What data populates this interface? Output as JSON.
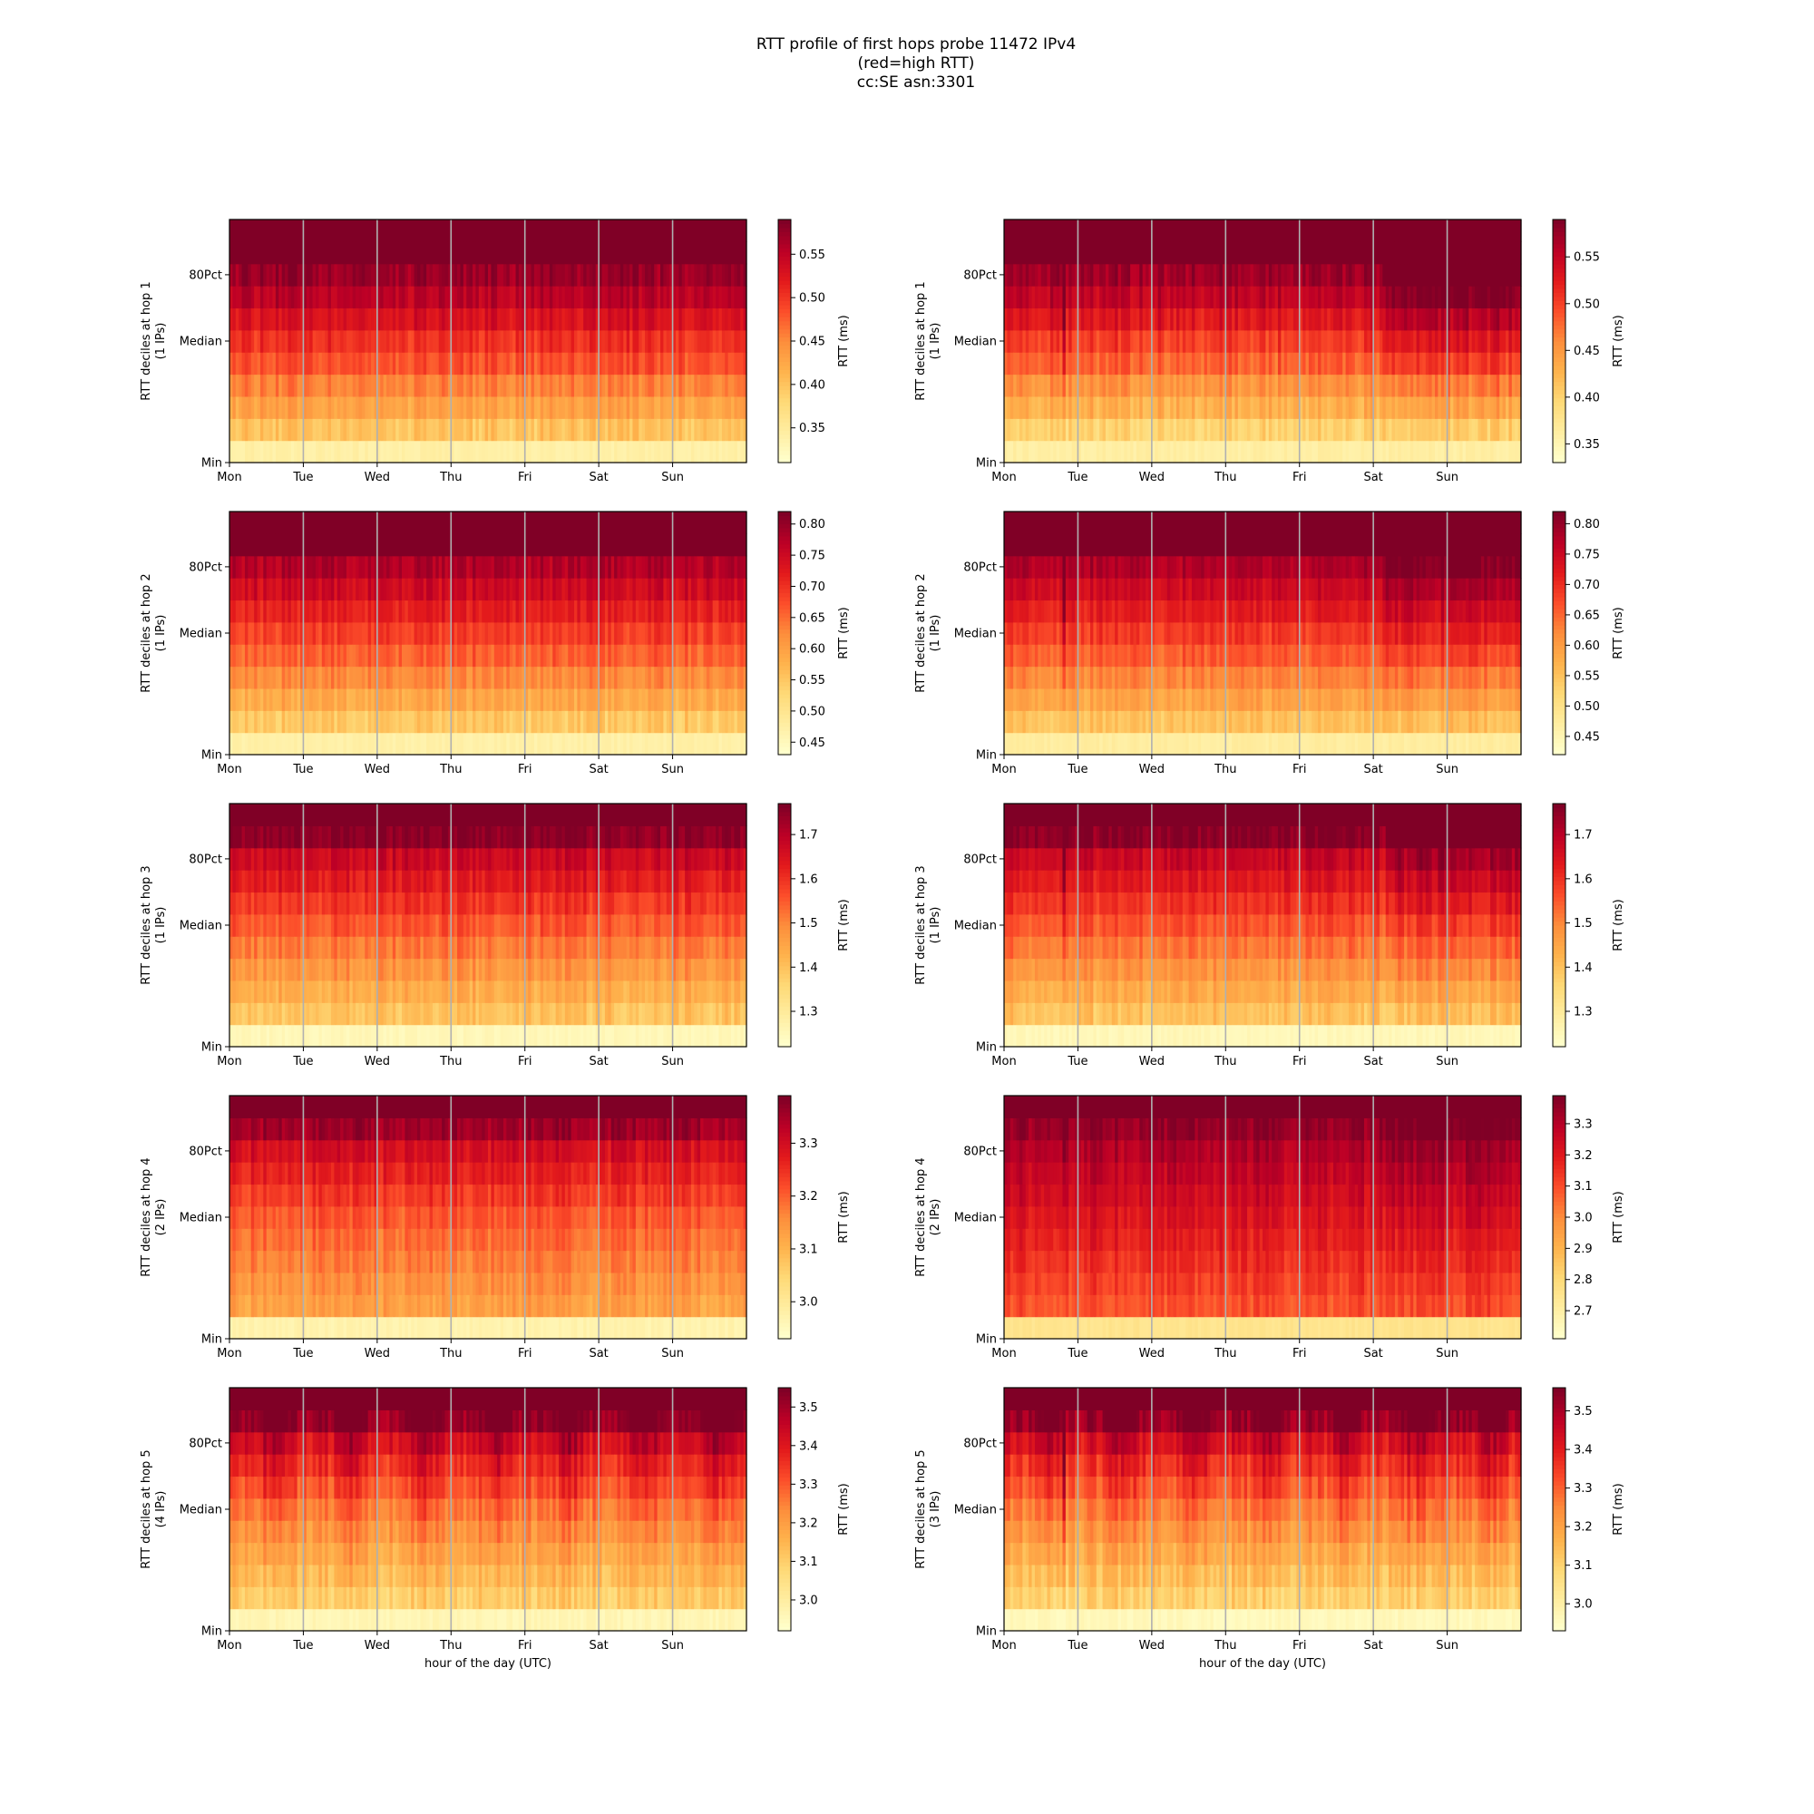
{
  "figure": {
    "title_lines": [
      "RTT profile of first hops probe 11472 IPv4",
      "(red=high RTT)",
      "cc:SE asn:3301"
    ]
  },
  "colormap": [
    "#ffffcc",
    "#ffeda0",
    "#fed976",
    "#feb24c",
    "#fd8d3c",
    "#fc4e2a",
    "#e31a1c",
    "#bd0026",
    "#800026"
  ],
  "chart_data": [
    {
      "type": "heatmap",
      "row": 1,
      "col": 1,
      "ylabel": "RTT deciles at hop 1",
      "ylabel2": "(1 IPs)",
      "yticks": [
        "Min",
        "Median",
        "80Pct"
      ],
      "xticks": [
        "Mon",
        "Tue",
        "Wed",
        "Thu",
        "Fri",
        "Sat",
        "Sun"
      ],
      "xlabel": "",
      "colorbar_label": "RTT (ms)",
      "colorbar_range": [
        0.31,
        0.59
      ],
      "colorbar_ticks": [
        "0.35",
        "0.40",
        "0.45",
        "0.50",
        "0.55"
      ],
      "deciles": [
        0.34,
        0.4,
        0.43,
        0.455,
        0.485,
        0.505,
        0.53,
        0.555,
        0.575,
        0.62,
        0.75
      ],
      "noise": 0.015,
      "events": []
    },
    {
      "type": "heatmap",
      "row": 1,
      "col": 2,
      "ylabel": "RTT deciles at hop 1",
      "ylabel2": "(1 IPs)",
      "yticks": [
        "Min",
        "Median",
        "80Pct"
      ],
      "xticks": [
        "Mon",
        "Tue",
        "Wed",
        "Thu",
        "Fri",
        "Sat",
        "Sun"
      ],
      "xlabel": "",
      "colorbar_label": "RTT (ms)",
      "colorbar_range": [
        0.33,
        0.59
      ],
      "colorbar_ticks": [
        "0.35",
        "0.40",
        "0.45",
        "0.50",
        "0.55"
      ],
      "deciles": [
        0.36,
        0.4,
        0.43,
        0.455,
        0.485,
        0.505,
        0.53,
        0.555,
        0.575,
        0.62,
        0.75
      ],
      "noise": 0.015,
      "events": [
        {
          "start": 0.108,
          "end": 0.115,
          "shift": 0.12
        },
        {
          "start": 0.735,
          "end": 1.0,
          "shift": 0.05
        }
      ]
    },
    {
      "type": "heatmap",
      "row": 2,
      "col": 1,
      "ylabel": "RTT deciles at hop 2",
      "ylabel2": "(1 IPs)",
      "yticks": [
        "Min",
        "Median",
        "80Pct"
      ],
      "xticks": [
        "Mon",
        "Tue",
        "Wed",
        "Thu",
        "Fri",
        "Sat",
        "Sun"
      ],
      "xlabel": "",
      "colorbar_label": "RTT (ms)",
      "colorbar_range": [
        0.43,
        0.82
      ],
      "colorbar_ticks": [
        "0.45",
        "0.50",
        "0.55",
        "0.60",
        "0.65",
        "0.70",
        "0.75",
        "0.80"
      ],
      "deciles": [
        0.47,
        0.55,
        0.59,
        0.625,
        0.66,
        0.69,
        0.72,
        0.75,
        0.78,
        0.85,
        1.0
      ],
      "noise": 0.02,
      "events": []
    },
    {
      "type": "heatmap",
      "row": 2,
      "col": 2,
      "ylabel": "RTT deciles at hop 2",
      "ylabel2": "(1 IPs)",
      "yticks": [
        "Min",
        "Median",
        "80Pct"
      ],
      "xticks": [
        "Mon",
        "Tue",
        "Wed",
        "Thu",
        "Fri",
        "Sat",
        "Sun"
      ],
      "xlabel": "",
      "colorbar_label": "RTT (ms)",
      "colorbar_range": [
        0.42,
        0.82
      ],
      "colorbar_ticks": [
        "0.45",
        "0.50",
        "0.55",
        "0.60",
        "0.65",
        "0.70",
        "0.75",
        "0.80"
      ],
      "deciles": [
        0.47,
        0.55,
        0.59,
        0.625,
        0.66,
        0.69,
        0.72,
        0.75,
        0.78,
        0.85,
        1.0
      ],
      "noise": 0.02,
      "events": [
        {
          "start": 0.108,
          "end": 0.115,
          "shift": 0.15
        },
        {
          "start": 0.735,
          "end": 1.0,
          "shift": 0.05
        }
      ]
    },
    {
      "type": "heatmap",
      "row": 3,
      "col": 1,
      "ylabel": "RTT deciles at hop 3",
      "ylabel2": "(1 IPs)",
      "yticks": [
        "Min",
        "Median",
        "80Pct"
      ],
      "xticks": [
        "Mon",
        "Tue",
        "Wed",
        "Thu",
        "Fri",
        "Sat",
        "Sun"
      ],
      "xlabel": "",
      "colorbar_label": "RTT (ms)",
      "colorbar_range": [
        1.22,
        1.77
      ],
      "colorbar_ticks": [
        "1.3",
        "1.4",
        "1.5",
        "1.6",
        "1.7"
      ],
      "deciles": [
        1.25,
        1.4,
        1.44,
        1.48,
        1.52,
        1.56,
        1.6,
        1.64,
        1.68,
        1.76,
        1.9
      ],
      "noise": 0.03,
      "events": []
    },
    {
      "type": "heatmap",
      "row": 3,
      "col": 2,
      "ylabel": "RTT deciles at hop 3",
      "ylabel2": "(1 IPs)",
      "yticks": [
        "Min",
        "Median",
        "80Pct"
      ],
      "xticks": [
        "Mon",
        "Tue",
        "Wed",
        "Thu",
        "Fri",
        "Sat",
        "Sun"
      ],
      "xlabel": "",
      "colorbar_label": "RTT (ms)",
      "colorbar_range": [
        1.22,
        1.77
      ],
      "colorbar_ticks": [
        "1.3",
        "1.4",
        "1.5",
        "1.6",
        "1.7"
      ],
      "deciles": [
        1.25,
        1.4,
        1.44,
        1.48,
        1.52,
        1.56,
        1.6,
        1.64,
        1.68,
        1.76,
        1.9
      ],
      "noise": 0.03,
      "events": [
        {
          "start": 0.108,
          "end": 0.115,
          "shift": 0.18
        },
        {
          "start": 0.735,
          "end": 1.0,
          "shift": 0.06
        }
      ]
    },
    {
      "type": "heatmap",
      "row": 4,
      "col": 1,
      "ylabel": "RTT deciles at hop 4",
      "ylabel2": "(2 IPs)",
      "yticks": [
        "Min",
        "Median",
        "80Pct"
      ],
      "xticks": [
        "Mon",
        "Tue",
        "Wed",
        "Thu",
        "Fri",
        "Sat",
        "Sun"
      ],
      "xlabel": "",
      "colorbar_label": "RTT (ms)",
      "colorbar_range": [
        2.93,
        3.39
      ],
      "colorbar_ticks": [
        "3.0",
        "3.1",
        "3.2",
        "3.3"
      ],
      "deciles": [
        2.97,
        3.13,
        3.15,
        3.17,
        3.19,
        3.21,
        3.24,
        3.27,
        3.3,
        3.36,
        3.5
      ],
      "noise": 0.025,
      "events": []
    },
    {
      "type": "heatmap",
      "row": 4,
      "col": 2,
      "ylabel": "RTT deciles at hop 4",
      "ylabel2": "(2 IPs)",
      "yticks": [
        "Min",
        "Median",
        "80Pct"
      ],
      "xticks": [
        "Mon",
        "Tue",
        "Wed",
        "Thu",
        "Fri",
        "Sat",
        "Sun"
      ],
      "xlabel": "",
      "colorbar_label": "RTT (ms)",
      "colorbar_range": [
        2.61,
        3.39
      ],
      "colorbar_ticks": [
        "2.7",
        "2.8",
        "2.9",
        "3.0",
        "3.1",
        "3.2",
        "3.3"
      ],
      "deciles": [
        2.75,
        3.1,
        3.13,
        3.16,
        3.19,
        3.22,
        3.25,
        3.28,
        3.31,
        3.36,
        3.5
      ],
      "noise": 0.04,
      "events": [
        {
          "start": 0.108,
          "end": 0.115,
          "shift": 0.12
        },
        {
          "start": 0.735,
          "end": 1.0,
          "shift": 0.04
        }
      ]
    },
    {
      "type": "heatmap",
      "row": 5,
      "col": 1,
      "ylabel": "RTT deciles at hop 5",
      "ylabel2": "(4 IPs)",
      "yticks": [
        "Min",
        "Median",
        "80Pct"
      ],
      "xticks": [
        "Mon",
        "Tue",
        "Wed",
        "Thu",
        "Fri",
        "Sat",
        "Sun"
      ],
      "xlabel": "hour of the day (UTC)",
      "colorbar_label": "RTT (ms)",
      "colorbar_range": [
        2.92,
        3.55
      ],
      "colorbar_ticks": [
        "3.0",
        "3.1",
        "3.2",
        "3.3",
        "3.4",
        "3.5"
      ],
      "deciles": [
        2.96,
        3.1,
        3.14,
        3.18,
        3.22,
        3.26,
        3.31,
        3.36,
        3.42,
        3.52,
        3.7
      ],
      "noise": 0.04,
      "diurnal": 0.1,
      "events": []
    },
    {
      "type": "heatmap",
      "row": 5,
      "col": 2,
      "ylabel": "RTT deciles at hop 5",
      "ylabel2": "(3 IPs)",
      "yticks": [
        "Min",
        "Median",
        "80Pct"
      ],
      "xticks": [
        "Mon",
        "Tue",
        "Wed",
        "Thu",
        "Fri",
        "Sat",
        "Sun"
      ],
      "xlabel": "hour of the day (UTC)",
      "colorbar_label": "RTT (ms)",
      "colorbar_range": [
        2.93,
        3.56
      ],
      "colorbar_ticks": [
        "3.0",
        "3.1",
        "3.2",
        "3.3",
        "3.4",
        "3.5"
      ],
      "deciles": [
        2.96,
        3.1,
        3.14,
        3.18,
        3.22,
        3.26,
        3.31,
        3.36,
        3.42,
        3.52,
        3.7
      ],
      "noise": 0.04,
      "diurnal": 0.1,
      "events": [
        {
          "start": 0.108,
          "end": 0.115,
          "shift": 0.2
        }
      ]
    }
  ]
}
